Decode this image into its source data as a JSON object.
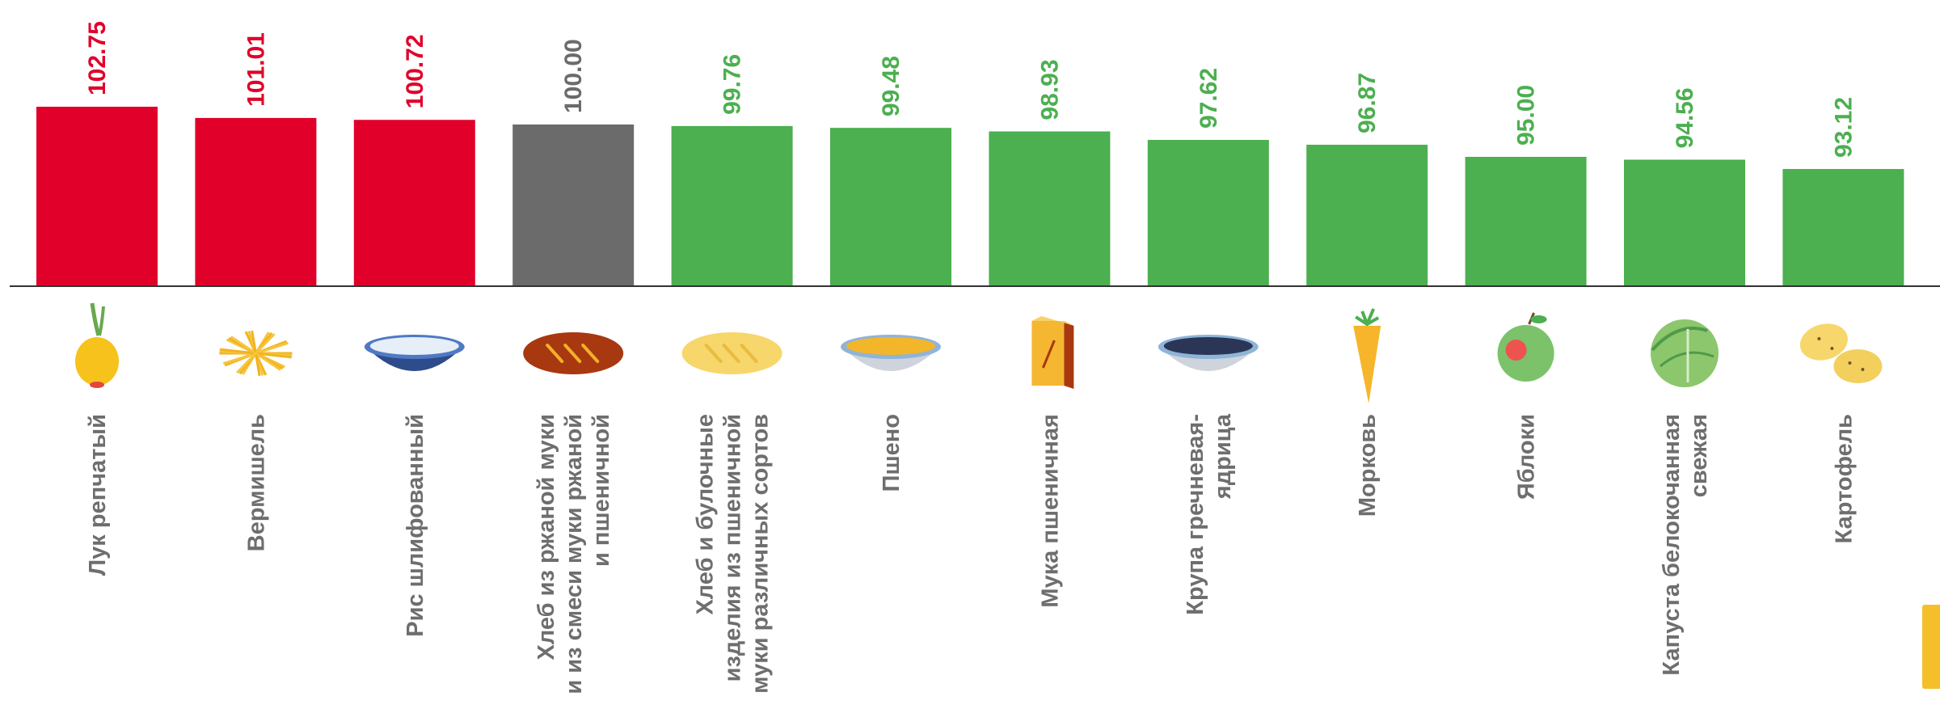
{
  "chart_data": {
    "type": "bar",
    "categories": [
      [
        "Лук репчатый"
      ],
      [
        "Вермишель"
      ],
      [
        "Рис шлифованный"
      ],
      [
        "Хлеб из ржаной муки",
        "и из смеси муки ржаной",
        "и пшеничной"
      ],
      [
        "Хлеб и булочные",
        "изделия из пшеничной",
        "муки различных сортов"
      ],
      [
        "Пшено"
      ],
      [
        "Мука пшеничная"
      ],
      [
        "Крупа гречневая-",
        "ядрица"
      ],
      [
        "Морковь"
      ],
      [
        "Яблоки"
      ],
      [
        "Капуста белокочанная",
        "свежая"
      ],
      [
        "Картофель"
      ]
    ],
    "values": [
      102.75,
      101.01,
      100.72,
      100.0,
      99.76,
      99.48,
      98.93,
      97.62,
      96.87,
      95.0,
      94.56,
      93.12
    ],
    "value_labels": [
      "102.75",
      "101.01",
      "100.72",
      "100.00",
      "99.76",
      "99.48",
      "98.93",
      "97.62",
      "96.87",
      "95.00",
      "94.56",
      "93.12"
    ],
    "icons": [
      "onion-icon",
      "vermicelli-icon",
      "rice-bowl-icon",
      "rye-bread-icon",
      "wheat-bread-icon",
      "millet-bowl-icon",
      "flour-bag-icon",
      "buckwheat-bowl-icon",
      "carrot-icon",
      "apple-icon",
      "cabbage-icon",
      "potato-icon"
    ],
    "colors": {
      "above": "#e0002a",
      "baseline": "#6b6b6b",
      "below": "#4caf50",
      "label_text": "#6e6e6e",
      "axis": "#333333",
      "side_tab": "#f5bf2a"
    },
    "baseline_value": 100,
    "ylim": [
      75,
      105
    ],
    "grid": false,
    "legend": "none"
  }
}
